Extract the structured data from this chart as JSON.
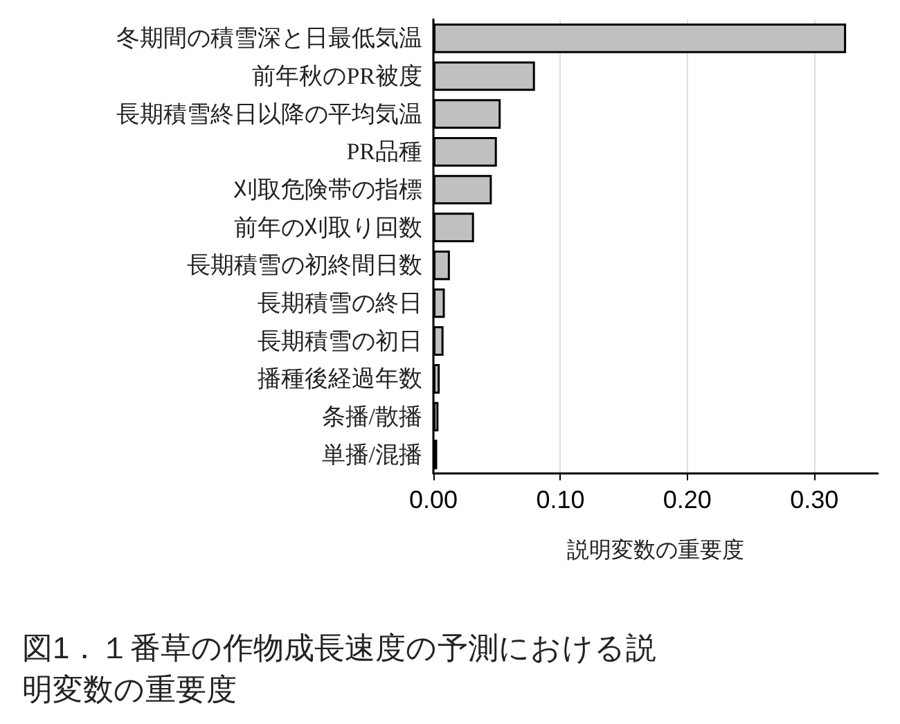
{
  "chart_data": {
    "type": "bar",
    "orientation": "horizontal",
    "categories": [
      "冬期間の積雪深と日最低気温",
      "前年秋のPR被度",
      "長期積雪終日以降の平均気温",
      "PR品種",
      "刈取危険帯の指標",
      "前年の刈取り回数",
      "長期積雪の初終間日数",
      "長期積雪の終日",
      "長期積雪の初日",
      "播種後経過年数",
      "条播/散播",
      "単播/混播"
    ],
    "values": [
      0.325,
      0.08,
      0.053,
      0.05,
      0.046,
      0.032,
      0.013,
      0.009,
      0.008,
      0.005,
      0.004,
      0.003
    ],
    "color": "#c0c0c0",
    "xlim": [
      0,
      0.35
    ],
    "xticks": [
      {
        "value": 0,
        "label": "0.00"
      },
      {
        "value": 0.1,
        "label": "0.10"
      },
      {
        "value": 0.2,
        "label": "0.20"
      },
      {
        "value": 0.3,
        "label": "0.30"
      }
    ],
    "xlabel": "説明変数の重要度",
    "grid": "x",
    "annotations": [
      "図1．１番草の作物成長速度の予測における説明変数の重要度"
    ]
  }
}
